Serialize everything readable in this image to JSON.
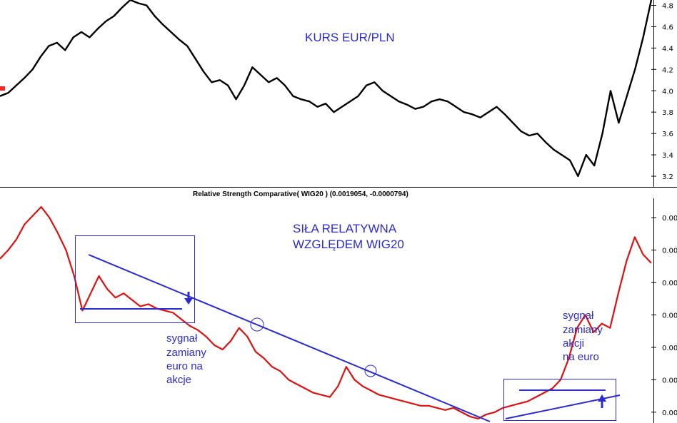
{
  "chart_data": [
    {
      "type": "line",
      "title": "KURS EUR/PLN",
      "ylim": [
        3.1,
        4.85
      ],
      "yticks": [
        "4.8",
        "4.6",
        "4.4",
        "4.2",
        "4.0",
        "3.8",
        "3.6",
        "3.4",
        "3.2"
      ],
      "ytick_values": [
        4.8,
        4.6,
        4.4,
        4.2,
        4.0,
        3.8,
        3.6,
        3.4,
        3.2
      ],
      "grid": false,
      "series": [
        {
          "color": "#000000",
          "values": [
            3.95,
            3.98,
            4.05,
            4.12,
            4.2,
            4.32,
            4.42,
            4.45,
            4.38,
            4.5,
            4.55,
            4.5,
            4.58,
            4.65,
            4.7,
            4.78,
            4.85,
            4.82,
            4.8,
            4.7,
            4.62,
            4.55,
            4.48,
            4.42,
            4.3,
            4.18,
            4.08,
            4.1,
            4.05,
            3.92,
            4.05,
            4.22,
            4.15,
            4.08,
            4.12,
            4.05,
            3.95,
            3.92,
            3.9,
            3.85,
            3.88,
            3.8,
            3.85,
            3.9,
            3.95,
            4.05,
            4.08,
            4.0,
            3.95,
            3.9,
            3.87,
            3.83,
            3.85,
            3.9,
            3.92,
            3.9,
            3.85,
            3.8,
            3.78,
            3.75,
            3.8,
            3.85,
            3.78,
            3.7,
            3.62,
            3.58,
            3.6,
            3.52,
            3.45,
            3.4,
            3.35,
            3.2,
            3.4,
            3.3,
            3.6,
            4.0,
            3.7,
            3.95,
            4.2,
            4.5,
            4.85
          ]
        }
      ]
    },
    {
      "type": "line",
      "title": "SIŁA RELATYWNA WZGLĘDEM WIG20",
      "subtitle": "Relative Strength Comparative( WIG20 ) (0.0019054, -0.0000794)",
      "ylim": [
        0,
        100
      ],
      "yticks": [
        "0.00",
        "0.00",
        "0.00",
        "0.00",
        "0.00",
        "0.00",
        "0.00"
      ],
      "ytick_values": [
        95,
        80,
        65,
        50,
        35,
        20,
        5
      ],
      "grid": false,
      "series": [
        {
          "color": "#dd1111",
          "values": [
            76,
            80,
            85,
            92,
            96,
            100,
            95,
            88,
            80,
            68,
            52,
            60,
            68,
            62,
            58,
            60,
            57,
            54,
            55,
            53,
            52,
            51,
            48,
            45,
            43,
            40,
            36,
            34,
            38,
            44,
            40,
            33,
            30,
            26,
            24,
            20,
            18,
            16,
            14,
            13,
            12,
            17,
            26,
            20,
            17,
            15,
            13,
            12,
            11,
            10,
            9,
            8,
            8,
            7,
            6,
            7,
            5,
            3,
            2,
            4,
            5,
            7,
            8,
            9,
            10,
            12,
            14,
            16,
            20,
            30,
            44,
            50,
            42,
            46,
            44,
            60,
            75,
            86,
            78,
            74
          ]
        }
      ],
      "annotations": [
        {
          "label": "signal-down",
          "text_lines": [
            "sygnał",
            "zamiany",
            "euro na",
            "akcje"
          ]
        },
        {
          "label": "signal-up",
          "text_lines": [
            "sygnał",
            "zamiany",
            "akcji",
            "na euro"
          ]
        }
      ]
    }
  ]
}
